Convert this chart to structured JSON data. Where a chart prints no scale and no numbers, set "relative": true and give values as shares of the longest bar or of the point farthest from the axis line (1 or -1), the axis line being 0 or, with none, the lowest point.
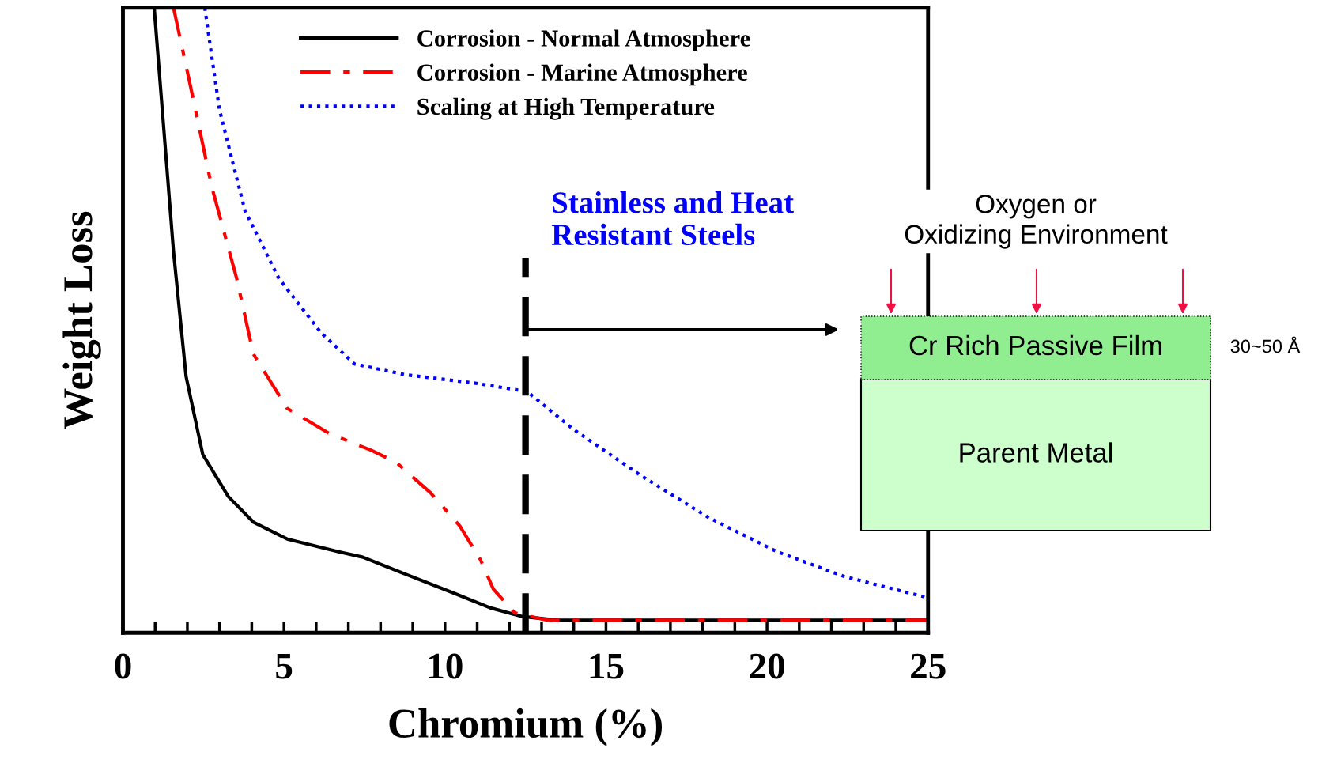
{
  "chart_data": {
    "type": "line",
    "xlabel": "Chromium (%)",
    "ylabel": "Weight Loss",
    "relative": true,
    "xlim": [
      0,
      25
    ],
    "xticks": [
      0,
      {
        "value": 1,
        "label": null
      },
      {
        "value": 2,
        "label": null
      },
      {
        "value": 3,
        "label": null
      },
      {
        "value": 4,
        "label": null
      },
      5,
      {
        "value": 6,
        "label": null
      },
      {
        "value": 7,
        "label": null
      },
      {
        "value": 8,
        "label": null
      },
      {
        "value": 9,
        "label": null
      },
      10,
      {
        "value": 11,
        "label": null
      },
      {
        "value": 12,
        "label": null
      },
      {
        "value": 13,
        "label": null
      },
      {
        "value": 14,
        "label": null
      },
      15,
      {
        "value": 16,
        "label": null
      },
      {
        "value": 17,
        "label": null
      },
      {
        "value": 18,
        "label": null
      },
      {
        "value": 19,
        "label": null
      },
      20,
      {
        "value": 21,
        "label": null
      },
      {
        "value": 22,
        "label": null
      },
      {
        "value": 23,
        "label": null
      },
      {
        "value": 24,
        "label": null
      },
      25
    ],
    "tick_labels": "x",
    "legend": "top",
    "grid": false,
    "marker": "none",
    "series": [
      {
        "name": "Corrosion - Normal Atmosphere",
        "color": "#000000",
        "line_style": "solid",
        "x": [
          0.97,
          1.57,
          1.96,
          2.48,
          3.27,
          4.05,
          5.1,
          6.67,
          7.45,
          8.76,
          10.3,
          11.4,
          12.4,
          13.5,
          25
        ],
        "values": [
          1.0,
          0.61,
          0.41,
          0.285,
          0.218,
          0.177,
          0.15,
          0.13,
          0.121,
          0.094,
          0.063,
          0.04,
          0.026,
          0.02,
          0.02
        ]
      },
      {
        "name": "Corrosion - Marine Atmosphere",
        "color": "#ff0000",
        "line_style": "dashdot",
        "x": [
          1.57,
          2.09,
          2.75,
          3.53,
          4.05,
          5.1,
          6.4,
          7.71,
          8.5,
          9.55,
          10.46,
          11.1,
          11.5,
          12.16,
          13.2,
          25
        ],
        "values": [
          1.0,
          0.876,
          0.715,
          0.567,
          0.446,
          0.359,
          0.319,
          0.292,
          0.272,
          0.224,
          0.171,
          0.117,
          0.07,
          0.032,
          0.02,
          0.02
        ]
      },
      {
        "name": "Scaling at High Temperature",
        "color": "#0000ff",
        "line_style": "dotted",
        "x": [
          2.54,
          3.0,
          3.79,
          4.84,
          6.15,
          7.19,
          8.76,
          10.85,
          12.55,
          14.0,
          16.1,
          18.2,
          20.3,
          22.4,
          25
        ],
        "values": [
          1.0,
          0.836,
          0.675,
          0.567,
          0.48,
          0.43,
          0.413,
          0.4,
          0.386,
          0.325,
          0.251,
          0.184,
          0.13,
          0.09,
          0.056
        ]
      }
    ],
    "ref_lines": [
      {
        "axis": "x",
        "value": 12.5,
        "label": "Stainless and Heat\nResistant Steels",
        "color": "#000000",
        "line_style": "dashed"
      }
    ],
    "annotations": [
      "Oxygen or\nOxidizing Environment",
      "Cr Rich Passive Film",
      "Parent Metal",
      "30~50 Å"
    ]
  }
}
